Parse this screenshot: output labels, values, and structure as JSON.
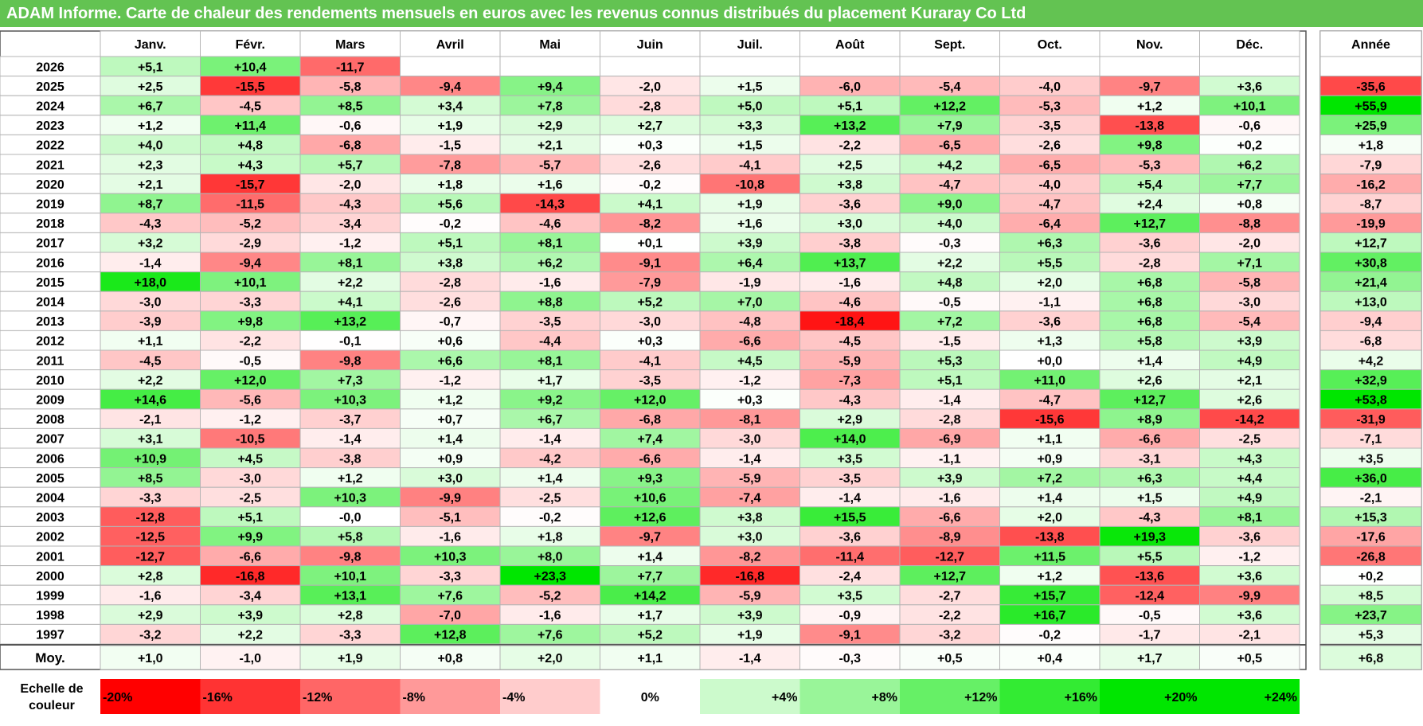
{
  "title": "ADAM Informe. Carte de chaleur des rendements mensuels en euros avec les revenus connus distribués du placement Kuraray Co Ltd",
  "chart_data": {
    "type": "heatmap",
    "title": "ADAM Informe. Carte de chaleur des rendements mensuels en euros avec les revenus connus distribués du placement Kuraray Co Ltd",
    "months": [
      "Janv.",
      "Févr.",
      "Mars",
      "Avril",
      "Mai",
      "Juin",
      "Juil.",
      "Août",
      "Sept.",
      "Oct.",
      "Nov.",
      "Déc."
    ],
    "year_header": "Année",
    "rows": [
      {
        "year": "2026",
        "values": [
          "+5,1",
          "+10,4",
          "-11,7",
          "",
          "",
          "",
          "",
          "",
          "",
          "",
          "",
          ""
        ],
        "annual": ""
      },
      {
        "year": "2025",
        "values": [
          "+2,5",
          "-15,5",
          "-5,8",
          "-9,4",
          "+9,4",
          "-2,0",
          "+1,5",
          "-6,0",
          "-5,4",
          "-4,0",
          "-9,7",
          "+3,6"
        ],
        "annual": "-35,6"
      },
      {
        "year": "2024",
        "values": [
          "+6,7",
          "-4,5",
          "+8,5",
          "+3,4",
          "+7,8",
          "-2,8",
          "+5,0",
          "+5,1",
          "+12,2",
          "-5,3",
          "+1,2",
          "+10,1"
        ],
        "annual": "+55,9"
      },
      {
        "year": "2023",
        "values": [
          "+1,2",
          "+11,4",
          "-0,6",
          "+1,9",
          "+2,9",
          "+2,7",
          "+3,3",
          "+13,2",
          "+7,9",
          "-3,5",
          "-13,8",
          "-0,6"
        ],
        "annual": "+25,9"
      },
      {
        "year": "2022",
        "values": [
          "+4,0",
          "+4,8",
          "-6,8",
          "-1,5",
          "+2,1",
          "+0,3",
          "+1,5",
          "-2,2",
          "-6,5",
          "-2,6",
          "+9,8",
          "+0,2"
        ],
        "annual": "+1,8"
      },
      {
        "year": "2021",
        "values": [
          "+2,3",
          "+4,3",
          "+5,7",
          "-7,8",
          "-5,7",
          "-2,6",
          "-4,1",
          "+2,5",
          "+4,2",
          "-6,5",
          "-5,3",
          "+6,2"
        ],
        "annual": "-7,9"
      },
      {
        "year": "2020",
        "values": [
          "+2,1",
          "-15,7",
          "-2,0",
          "+1,8",
          "+1,6",
          "-0,2",
          "-10,8",
          "+3,8",
          "-4,7",
          "-4,0",
          "+5,4",
          "+7,7"
        ],
        "annual": "-16,2"
      },
      {
        "year": "2019",
        "values": [
          "+8,7",
          "-11,5",
          "-4,3",
          "+5,6",
          "-14,3",
          "+4,1",
          "+1,9",
          "-3,6",
          "+9,0",
          "-4,7",
          "+2,4",
          "+0,8"
        ],
        "annual": "-8,7"
      },
      {
        "year": "2018",
        "values": [
          "-4,3",
          "-5,2",
          "-3,4",
          "-0,2",
          "-4,6",
          "-8,2",
          "+1,6",
          "+3,0",
          "+4,0",
          "-6,4",
          "+12,7",
          "-8,8"
        ],
        "annual": "-19,9"
      },
      {
        "year": "2017",
        "values": [
          "+3,2",
          "-2,9",
          "-1,2",
          "+5,1",
          "+8,1",
          "+0,1",
          "+3,9",
          "-3,8",
          "-0,3",
          "+6,3",
          "-3,6",
          "-2,0"
        ],
        "annual": "+12,7"
      },
      {
        "year": "2016",
        "values": [
          "-1,4",
          "-9,4",
          "+8,1",
          "+3,8",
          "+6,2",
          "-9,1",
          "+6,4",
          "+13,7",
          "+2,2",
          "+5,5",
          "-2,8",
          "+7,1"
        ],
        "annual": "+30,8"
      },
      {
        "year": "2015",
        "values": [
          "+18,0",
          "+10,1",
          "+2,2",
          "-2,8",
          "-1,6",
          "-7,9",
          "-1,9",
          "-1,6",
          "+4,8",
          "+2,0",
          "+6,8",
          "-5,8"
        ],
        "annual": "+21,4"
      },
      {
        "year": "2014",
        "values": [
          "-3,0",
          "-3,3",
          "+4,1",
          "-2,6",
          "+8,8",
          "+5,2",
          "+7,0",
          "-4,6",
          "-0,5",
          "-1,1",
          "+6,8",
          "-3,0"
        ],
        "annual": "+13,0"
      },
      {
        "year": "2013",
        "values": [
          "-3,9",
          "+9,8",
          "+13,2",
          "-0,7",
          "-3,5",
          "-3,0",
          "-4,8",
          "-18,4",
          "+7,2",
          "-3,6",
          "+6,8",
          "-5,4"
        ],
        "annual": "-9,4"
      },
      {
        "year": "2012",
        "values": [
          "+1,1",
          "-2,2",
          "-0,1",
          "+0,6",
          "-4,4",
          "+0,3",
          "-6,6",
          "-4,5",
          "-1,5",
          "+1,3",
          "+5,8",
          "+3,9"
        ],
        "annual": "-6,8"
      },
      {
        "year": "2011",
        "values": [
          "-4,5",
          "-0,5",
          "-9,8",
          "+6,6",
          "+8,1",
          "-4,1",
          "+4,5",
          "-5,9",
          "+5,3",
          "+0,0",
          "+1,4",
          "+4,9"
        ],
        "annual": "+4,2"
      },
      {
        "year": "2010",
        "values": [
          "+2,2",
          "+12,0",
          "+7,3",
          "-1,2",
          "+1,7",
          "-3,5",
          "-1,2",
          "-7,3",
          "+5,1",
          "+11,0",
          "+2,6",
          "+2,1"
        ],
        "annual": "+32,9"
      },
      {
        "year": "2009",
        "values": [
          "+14,6",
          "-5,6",
          "+10,3",
          "+1,2",
          "+9,2",
          "+12,0",
          "+0,3",
          "-4,3",
          "-1,4",
          "-4,7",
          "+12,7",
          "+2,6"
        ],
        "annual": "+53,8"
      },
      {
        "year": "2008",
        "values": [
          "-2,1",
          "-1,2",
          "-3,7",
          "+0,7",
          "+6,7",
          "-6,8",
          "-8,1",
          "+2,9",
          "-2,8",
          "-15,6",
          "+8,9",
          "-14,2"
        ],
        "annual": "-31,9"
      },
      {
        "year": "2007",
        "values": [
          "+3,1",
          "-10,5",
          "-1,4",
          "+1,4",
          "-1,4",
          "+7,4",
          "-3,0",
          "+14,0",
          "-6,9",
          "+1,1",
          "-6,6",
          "-2,5"
        ],
        "annual": "-7,1"
      },
      {
        "year": "2006",
        "values": [
          "+10,9",
          "+4,5",
          "-3,8",
          "+0,9",
          "-4,2",
          "-6,6",
          "-1,4",
          "+3,5",
          "-1,1",
          "+0,9",
          "-3,1",
          "+4,3"
        ],
        "annual": "+3,5"
      },
      {
        "year": "2005",
        "values": [
          "+8,5",
          "-3,0",
          "+1,2",
          "+3,0",
          "+1,4",
          "+9,3",
          "-5,9",
          "-3,5",
          "+3,9",
          "+7,2",
          "+6,3",
          "+4,4"
        ],
        "annual": "+36,0"
      },
      {
        "year": "2004",
        "values": [
          "-3,3",
          "-2,5",
          "+10,3",
          "-9,9",
          "-2,5",
          "+10,6",
          "-7,4",
          "-1,4",
          "-1,6",
          "+1,4",
          "+1,5",
          "+4,9"
        ],
        "annual": "-2,1"
      },
      {
        "year": "2003",
        "values": [
          "-12,8",
          "+5,1",
          "-0,0",
          "-5,1",
          "-0,2",
          "+12,6",
          "+3,8",
          "+15,5",
          "-6,6",
          "+2,0",
          "-4,3",
          "+8,1"
        ],
        "annual": "+15,3"
      },
      {
        "year": "2002",
        "values": [
          "-12,5",
          "+9,9",
          "+5,8",
          "-1,6",
          "+1,8",
          "-9,7",
          "+3,0",
          "-3,6",
          "-8,9",
          "-13,8",
          "+19,3",
          "-3,6"
        ],
        "annual": "-17,6"
      },
      {
        "year": "2001",
        "values": [
          "-12,7",
          "-6,6",
          "-9,8",
          "+10,3",
          "+8,0",
          "+1,4",
          "-8,2",
          "-11,4",
          "-12,7",
          "+11,5",
          "+5,5",
          "-1,2"
        ],
        "annual": "-26,8"
      },
      {
        "year": "2000",
        "values": [
          "+2,8",
          "-16,8",
          "+10,1",
          "-3,3",
          "+23,3",
          "+7,7",
          "-16,8",
          "-2,4",
          "+12,7",
          "+1,2",
          "-13,6",
          "+3,6"
        ],
        "annual": "+0,2"
      },
      {
        "year": "1999",
        "values": [
          "-1,6",
          "-3,4",
          "+13,1",
          "+7,6",
          "-5,2",
          "+14,2",
          "-5,9",
          "+3,5",
          "-2,7",
          "+15,7",
          "-12,4",
          "-9,9"
        ],
        "annual": "+8,5"
      },
      {
        "year": "1998",
        "values": [
          "+2,9",
          "+3,9",
          "+2,8",
          "-7,0",
          "-1,6",
          "+1,7",
          "+3,9",
          "-0,9",
          "-2,2",
          "+16,7",
          "-0,5",
          "+3,6"
        ],
        "annual": "+23,7"
      },
      {
        "year": "1997",
        "values": [
          "-3,2",
          "+2,2",
          "-3,3",
          "+12,8",
          "+7,6",
          "+5,2",
          "+1,9",
          "-9,1",
          "-3,2",
          "-0,2",
          "-1,7",
          "-2,1"
        ],
        "annual": "+5,3"
      }
    ],
    "average": {
      "label": "Moy.",
      "values": [
        "+1,0",
        "-1,0",
        "+1,9",
        "+0,8",
        "+2,0",
        "+1,1",
        "-1,4",
        "-0,3",
        "+0,5",
        "+0,4",
        "+1,7",
        "+0,5"
      ],
      "annual": "+6,8"
    },
    "color_scale": {
      "label": "Echelle de couleur",
      "steps": [
        "-20%",
        "-16%",
        "-12%",
        "-8%",
        "-4%",
        "0%",
        "+4%",
        "+8%",
        "+12%",
        "+16%",
        "+20%",
        "+24%"
      ],
      "step_values": [
        -20,
        -16,
        -12,
        -8,
        -4,
        0,
        4,
        8,
        12,
        16,
        20,
        24
      ]
    },
    "colors": {
      "title_bg": "#63c352",
      "neg_max": "#ff0000",
      "zero": "#ffffff",
      "pos_max": "#00e600",
      "grid": "#b4b4b4",
      "border": "#555555"
    }
  }
}
